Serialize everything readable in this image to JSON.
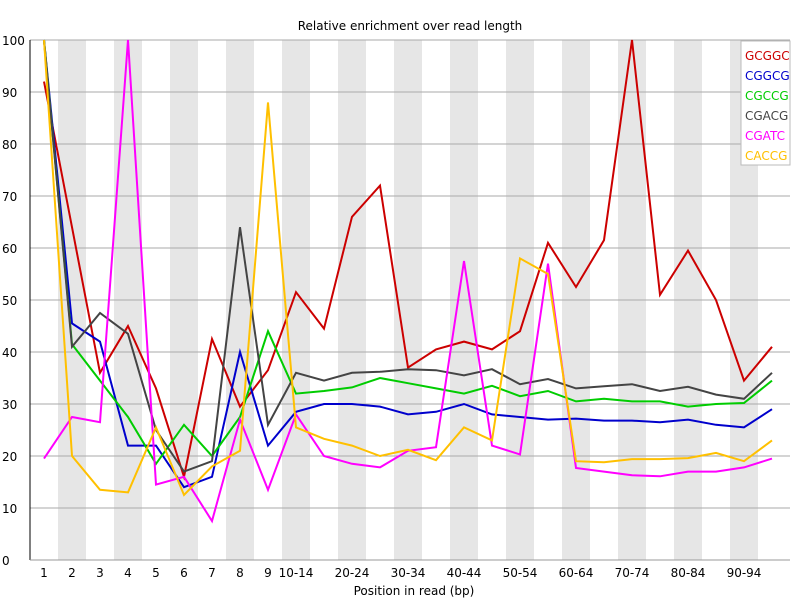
{
  "chart_data": {
    "type": "line",
    "title": "Relative enrichment over read length",
    "xlabel": "Position in read (bp)",
    "ylabel": "",
    "ylim": [
      0,
      100
    ],
    "yticks": [
      0,
      10,
      20,
      30,
      40,
      50,
      60,
      70,
      80,
      90,
      100
    ],
    "grid": true,
    "legend_position": "top-right",
    "categories": [
      "1",
      "2",
      "3",
      "4",
      "5",
      "6",
      "7",
      "8",
      "9",
      "10-14",
      "15-19",
      "20-24",
      "25-29",
      "30-34",
      "35-39",
      "40-44",
      "45-49",
      "50-54",
      "55-59",
      "60-64",
      "65-69",
      "70-74",
      "75-79",
      "80-84",
      "85-89",
      "90-94",
      "95-99"
    ],
    "visible_xtick_labels": [
      "1",
      "2",
      "3",
      "4",
      "5",
      "6",
      "7",
      "8",
      "9",
      "10-14",
      "20-24",
      "30-34",
      "40-44",
      "50-54",
      "60-64",
      "70-74",
      "80-84",
      "90-94"
    ],
    "series": [
      {
        "name": "GCGGC",
        "color": "#cc0000",
        "values": [
          92,
          64,
          36,
          45,
          33,
          16,
          42.5,
          29.5,
          36.5,
          51.5,
          44.5,
          66,
          72,
          37,
          40.5,
          42,
          40.5,
          44,
          61,
          52.5,
          61.5,
          100,
          51,
          59.5,
          50,
          34.5,
          41
        ]
      },
      {
        "name": "CGGCG",
        "color": "#0000cc",
        "values": [
          100,
          45.5,
          42,
          22,
          22,
          14,
          16,
          40,
          22,
          28.5,
          30,
          30,
          29.5,
          28,
          28.5,
          30,
          28,
          27.5,
          27,
          27.2,
          26.8,
          26.8,
          26.5,
          27,
          26,
          25.5,
          29
        ]
      },
      {
        "name": "CGCCG",
        "color": "#00cc00",
        "values": [
          100,
          41.5,
          34.5,
          27.5,
          18.5,
          26,
          20,
          27.5,
          44,
          32,
          32.5,
          33.2,
          35,
          34,
          33,
          32,
          33.5,
          31.5,
          32.5,
          30.5,
          31,
          30.5,
          30.5,
          29.5,
          30,
          30.2,
          34.5
        ]
      },
      {
        "name": "CGACG",
        "color": "#444444",
        "values": [
          100,
          41,
          47.5,
          43.5,
          25,
          17,
          19,
          64,
          26,
          36,
          34.5,
          36,
          36.2,
          36.7,
          36.5,
          35.5,
          36.7,
          33.8,
          34.8,
          33,
          33.4,
          33.8,
          32.5,
          33.3,
          31.8,
          31,
          36
        ]
      },
      {
        "name": "CGATC",
        "color": "#ff00ff",
        "values": [
          19.5,
          27.5,
          26.5,
          100,
          14.5,
          16,
          7.5,
          27,
          13.5,
          28,
          20,
          18.5,
          17.8,
          21,
          21.7,
          57.5,
          22,
          20.3,
          57,
          17.7,
          17,
          16.3,
          16.1,
          17,
          17,
          17.8,
          19.5
        ]
      },
      {
        "name": "CACCG",
        "color": "#ffc000",
        "values": [
          100,
          20,
          13.5,
          13,
          25.5,
          12.5,
          18,
          21,
          88,
          25.5,
          23.3,
          22,
          20,
          21.2,
          19.2,
          25.5,
          23,
          58,
          55,
          19,
          18.8,
          19.4,
          19.4,
          19.6,
          20.6,
          19,
          23
        ]
      }
    ]
  }
}
